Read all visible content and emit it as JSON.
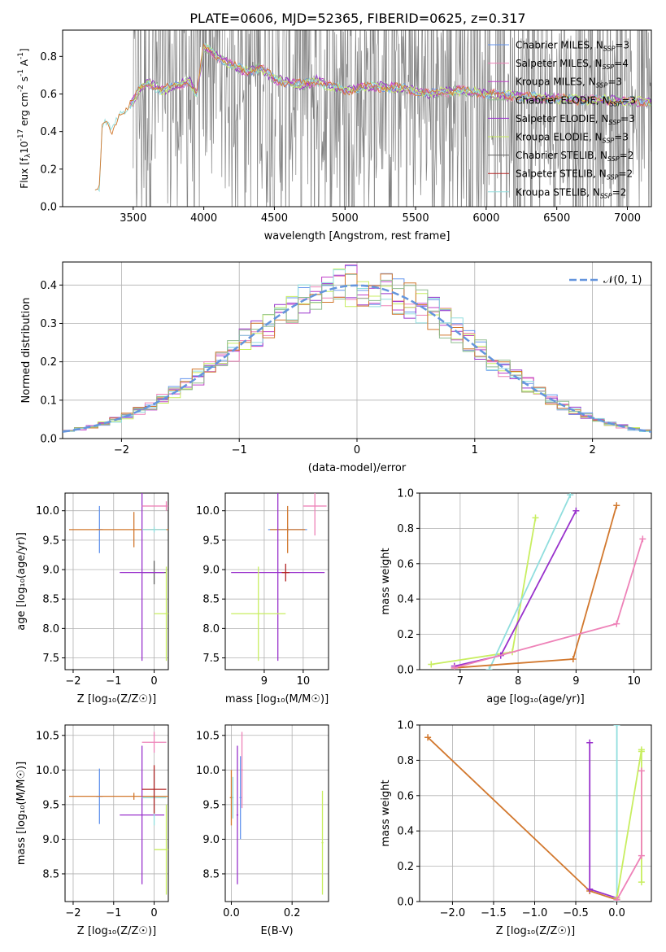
{
  "figure_title": "PLATE=0606, MJD=52365, FIBERID=0625, z=0.317",
  "colors": {
    "chabrier_miles": "#6495ed",
    "salpeter_miles": "#ee82b8",
    "kroupa_miles": "#c040c8",
    "chabrier_elodie": "#8fbc8f",
    "salpeter_elodie": "#9932cc",
    "kroupa_elodie": "#c8ee60",
    "chabrier_stelib": "#606060",
    "salpeter_stelib": "#b22222",
    "kroupa_stelib": "#90dede",
    "data": "#808080",
    "model_orange": "#d2782e",
    "gauss": "#6495dd"
  },
  "chart_data": [
    {
      "id": "spectrum",
      "type": "line",
      "xlabel": "wavelength [Angstrom, rest frame]",
      "ylabel_main": "Flux [f",
      "ylabel_sub": "λ",
      "ylabel_mid": "10",
      "ylabel_sup1": "-17",
      "ylabel_mid2": " erg cm",
      "ylabel_sup2": "-2",
      "ylabel_mid3": " s",
      "ylabel_sup3": "-1",
      "ylabel_mid4": " A",
      "ylabel_sup4": "-1",
      "ylabel_end": "]",
      "xlim": [
        3000,
        7170
      ],
      "ylim": [
        0,
        0.94
      ],
      "xticks": [
        "3500",
        "4000",
        "4500",
        "5000",
        "5500",
        "6000",
        "6500",
        "7000"
      ],
      "yticks": [
        "0.0",
        "0.2",
        "0.4",
        "0.6",
        "0.8"
      ],
      "legend": [
        {
          "pre": "Chabrier MILES, N",
          "sub": "SSP",
          "post": "=3"
        },
        {
          "pre": "Salpeter MILES, N",
          "sub": "SSP",
          "post": "=4"
        },
        {
          "pre": "Kroupa MILES, N",
          "sub": "SSP",
          "post": "=3"
        },
        {
          "pre": "Chabrier ELODIE, N",
          "sub": "SSP",
          "post": "=3"
        },
        {
          "pre": "Salpeter ELODIE, N",
          "sub": "SSP",
          "post": "=3"
        },
        {
          "pre": "Kroupa ELODIE, N",
          "sub": "SSP",
          "post": "=3"
        },
        {
          "pre": "Chabrier STELIB, N",
          "sub": "SSP",
          "post": "=2"
        },
        {
          "pre": "Salpeter STELIB, N",
          "sub": "SSP",
          "post": "=2"
        },
        {
          "pre": "Kroupa STELIB, N",
          "sub": "SSP",
          "post": "=2"
        }
      ],
      "model_continuum": {
        "x": [
          3200,
          3260,
          3280,
          3300,
          3350,
          3400,
          3450,
          3500,
          3550,
          3600,
          3700,
          3800,
          3900,
          3950,
          4000,
          4100,
          4200,
          4300,
          4400,
          4500,
          4600,
          4700,
          4800,
          4900,
          5000,
          5200,
          5400,
          5600,
          5800,
          6000,
          6200,
          6400,
          6600,
          6800,
          7000
        ],
        "y": [
          0.08,
          0.1,
          0.41,
          0.44,
          0.4,
          0.5,
          0.52,
          0.56,
          0.63,
          0.66,
          0.62,
          0.64,
          0.67,
          0.6,
          0.85,
          0.8,
          0.75,
          0.72,
          0.74,
          0.68,
          0.66,
          0.65,
          0.67,
          0.64,
          0.62,
          0.64,
          0.63,
          0.6,
          0.62,
          0.6,
          0.59,
          0.58,
          0.57,
          0.57,
          0.56
        ]
      },
      "noise_region": [
        3500,
        7170
      ]
    },
    {
      "id": "residuals",
      "type": "histogram",
      "xlabel": "(data-model)/error",
      "ylabel": "Normed distribution",
      "xlim": [
        -2.5,
        2.5
      ],
      "ylim": [
        0,
        0.46
      ],
      "xticks": [
        -2,
        -1,
        0,
        1,
        2
      ],
      "xtick_labels": [
        "−2",
        "−1",
        "0",
        "1",
        "2"
      ],
      "yticks": [
        "0.0",
        "0.1",
        "0.2",
        "0.3",
        "0.4"
      ],
      "legend_label": "𝒩(0, 1)",
      "bin_edges_start": -2.5,
      "bin_width": 0.1,
      "gaussian": {
        "mu": 0,
        "sigma": 1
      }
    },
    {
      "id": "age-vs-Z",
      "type": "errorbar",
      "xlabel": "Z [log₁₀(Z/Z☉)]",
      "ylabel": "age  [log₁₀(age/yr)]",
      "xlim": [
        -2.2,
        0.35
      ],
      "ylim": [
        7.3,
        10.3
      ],
      "xticks": [
        -2,
        -1,
        0
      ],
      "xtick_labels": [
        "−2",
        "−1",
        "0"
      ],
      "yticks": [
        7.5,
        8.0,
        8.5,
        9.0,
        9.5,
        10.0
      ],
      "ytick_labels": [
        "7.5",
        "8.0",
        "8.5",
        "9.0",
        "9.5",
        "10.0"
      ],
      "points": [
        {
          "x": -1.35,
          "y": 9.68,
          "xerr": 0.08,
          "yerr": 0.4,
          "c": "#6495ed"
        },
        {
          "x": -0.5,
          "y": 9.68,
          "xerr": 1.6,
          "yerr": 0.3,
          "c": "#d2782e"
        },
        {
          "x": 0.0,
          "y": 8.95,
          "xerr": 0.3,
          "yerr": 0.2,
          "c": "#606060"
        },
        {
          "x": -0.3,
          "y": 8.95,
          "xerr": 0.55,
          "yerr": 1.5,
          "c": "#9932cc"
        },
        {
          "x": 0.0,
          "y": 9.68,
          "xerr": 0.3,
          "yerr": 0.05,
          "c": "#90dede"
        },
        {
          "x": 0.3,
          "y": 10.08,
          "xerr": 0.6,
          "yerr": 0.08,
          "c": "#ee82b8"
        },
        {
          "x": 0.3,
          "y": 8.25,
          "xerr": 0.3,
          "yerr": 0.8,
          "c": "#c8ee60"
        }
      ]
    },
    {
      "id": "age-vs-mass",
      "type": "errorbar",
      "xlabel": "mass [log₁₀(M/M☉)]",
      "xlim": [
        8.0,
        10.65
      ],
      "ylim": [
        7.3,
        10.3
      ],
      "xticks": [
        9,
        10
      ],
      "xtick_labels": [
        "9",
        "10"
      ],
      "yticks": [
        7.5,
        8.0,
        8.5,
        9.0,
        9.5,
        10.0
      ],
      "ytick_labels": [
        "7.5",
        "8.0",
        "8.5",
        "9.0",
        "9.5",
        "10.0"
      ],
      "points": [
        {
          "x": 9.6,
          "y": 9.68,
          "xerr": 0.5,
          "yerr": 0.05,
          "c": "#6495ed"
        },
        {
          "x": 9.6,
          "y": 9.68,
          "xerr": 0.45,
          "yerr": 0.4,
          "c": "#d2782e"
        },
        {
          "x": 9.35,
          "y": 8.95,
          "xerr": 1.2,
          "yerr": 1.5,
          "c": "#9932cc"
        },
        {
          "x": 8.85,
          "y": 8.25,
          "xerr": 0.7,
          "yerr": 0.8,
          "c": "#c8ee60"
        },
        {
          "x": 9.55,
          "y": 8.95,
          "xerr": 0.1,
          "yerr": 0.15,
          "c": "#b22222"
        },
        {
          "x": 10.3,
          "y": 10.08,
          "xerr": 0.3,
          "yerr": 0.5,
          "c": "#ee82b8"
        }
      ]
    },
    {
      "id": "massweight-vs-age",
      "type": "line",
      "xlabel": "age  [log₁₀(age/yr)]",
      "ylabel": "mass weight",
      "xlim": [
        6.3,
        10.3
      ],
      "ylim": [
        0,
        1
      ],
      "xticks": [
        7,
        8,
        9,
        10
      ],
      "xtick_labels": [
        "7",
        "8",
        "9",
        "10"
      ],
      "yticks": [
        0.0,
        0.2,
        0.4,
        0.6,
        0.8,
        1.0
      ],
      "ytick_labels": [
        "0.0",
        "0.2",
        "0.4",
        "0.6",
        "0.8",
        "1.0"
      ],
      "series": [
        {
          "c": "#c8ee60",
          "x": [
            6.5,
            7.9,
            8.3
          ],
          "y": [
            0.03,
            0.1,
            0.86
          ]
        },
        {
          "c": "#9932cc",
          "x": [
            6.9,
            7.7,
            9.0
          ],
          "y": [
            0.02,
            0.08,
            0.9
          ]
        },
        {
          "c": "#90dede",
          "x": [
            7.5,
            8.9
          ],
          "y": [
            0.0,
            0.99
          ]
        },
        {
          "c": "#d2782e",
          "x": [
            6.9,
            8.95,
            9.7
          ],
          "y": [
            0.01,
            0.06,
            0.93
          ]
        },
        {
          "c": "#ee82b8",
          "x": [
            6.9,
            9.7,
            10.15
          ],
          "y": [
            0.01,
            0.26,
            0.74
          ]
        }
      ]
    },
    {
      "id": "mass-vs-Z",
      "type": "errorbar",
      "xlabel": "Z [log₁₀(Z/Z☉)]",
      "ylabel": "mass [log₁₀(M/M☉)]",
      "xlim": [
        -2.2,
        0.35
      ],
      "ylim": [
        8.1,
        10.65
      ],
      "xticks": [
        -2,
        -1,
        0
      ],
      "xtick_labels": [
        "−2",
        "−1",
        "0"
      ],
      "yticks": [
        8.5,
        9.0,
        9.5,
        10.0,
        10.5
      ],
      "ytick_labels": [
        "8.5",
        "9.0",
        "9.5",
        "10.0",
        "10.5"
      ],
      "points": [
        {
          "x": -1.35,
          "y": 9.62,
          "xerr": 0.08,
          "yerr": 0.4,
          "c": "#6495ed"
        },
        {
          "x": -0.5,
          "y": 9.62,
          "xerr": 1.6,
          "yerr": 0.05,
          "c": "#d2782e"
        },
        {
          "x": -0.3,
          "y": 9.35,
          "xerr": 0.55,
          "yerr": 1.0,
          "c": "#9932cc"
        },
        {
          "x": 0.0,
          "y": 9.6,
          "xerr": 0.3,
          "yerr": 0.4,
          "c": "#90dede"
        },
        {
          "x": 0.0,
          "y": 9.72,
          "xerr": 0.3,
          "yerr": 0.35,
          "c": "#b22222"
        },
        {
          "x": 0.0,
          "y": 10.4,
          "xerr": 0.3,
          "yerr": 0.15,
          "c": "#ee82b8"
        },
        {
          "x": 0.3,
          "y": 8.85,
          "xerr": 0.3,
          "yerr": 0.65,
          "c": "#c8ee60"
        }
      ]
    },
    {
      "id": "mass-vs-ebv",
      "type": "errorbar",
      "xlabel": "E(B-V)",
      "xlim": [
        -0.02,
        0.32
      ],
      "ylim": [
        8.1,
        10.65
      ],
      "xticks": [
        0.0,
        0.2
      ],
      "xtick_labels": [
        "0.0",
        "0.2"
      ],
      "yticks": [
        8.5,
        9.0,
        9.5,
        10.0,
        10.5
      ],
      "ytick_labels": [
        "8.5",
        "9.0",
        "9.5",
        "10.0",
        "10.5"
      ],
      "points": [
        {
          "x": 0.0,
          "y": 9.6,
          "xerr": 0.005,
          "yerr": 0.4,
          "c": "#d2782e"
        },
        {
          "x": 0.005,
          "y": 9.6,
          "xerr": 0.003,
          "yerr": 0.3,
          "c": "#90dede"
        },
        {
          "x": 0.02,
          "y": 9.35,
          "xerr": 0.003,
          "yerr": 1.0,
          "c": "#9932cc"
        },
        {
          "x": 0.03,
          "y": 9.6,
          "xerr": 0.003,
          "yerr": 0.6,
          "c": "#6495ed"
        },
        {
          "x": 0.035,
          "y": 10.0,
          "xerr": 0.003,
          "yerr": 0.55,
          "c": "#ee82b8"
        },
        {
          "x": 0.3,
          "y": 8.95,
          "xerr": 0.003,
          "yerr": 0.75,
          "c": "#c8ee60"
        }
      ]
    },
    {
      "id": "massweight-vs-Z",
      "type": "line",
      "xlabel": "Z [log₁₀(Z/Z☉)]",
      "ylabel": "mass weight",
      "xlim": [
        -2.4,
        0.42
      ],
      "ylim": [
        0,
        1
      ],
      "xticks": [
        -2.0,
        -1.5,
        -1.0,
        -0.5,
        0.0
      ],
      "xtick_labels": [
        "−2.0",
        "−1.5",
        "−1.0",
        "−0.5",
        "0.0"
      ],
      "yticks": [
        0.0,
        0.2,
        0.4,
        0.6,
        0.8,
        1.0
      ],
      "ytick_labels": [
        "0.0",
        "0.2",
        "0.4",
        "0.6",
        "0.8",
        "1.0"
      ],
      "series": [
        {
          "c": "#d2782e",
          "x": [
            -2.3,
            -0.33,
            0.0
          ],
          "y": [
            0.93,
            0.06,
            0.01
          ]
        },
        {
          "c": "#9932cc",
          "x": [
            -0.33,
            -0.33,
            0.0
          ],
          "y": [
            0.9,
            0.07,
            0.02
          ]
        },
        {
          "c": "#90dede",
          "x": [
            0.0,
            0.0
          ],
          "y": [
            0.0,
            1.0
          ]
        },
        {
          "c": "#c8ee60",
          "x": [
            0.0,
            0.3,
            0.3,
            0.3
          ],
          "y": [
            0.02,
            0.86,
            0.11,
            0.85
          ]
        },
        {
          "c": "#ee82b8",
          "x": [
            0.0,
            0.3,
            0.3
          ],
          "y": [
            0.01,
            0.26,
            0.74
          ]
        }
      ]
    }
  ]
}
